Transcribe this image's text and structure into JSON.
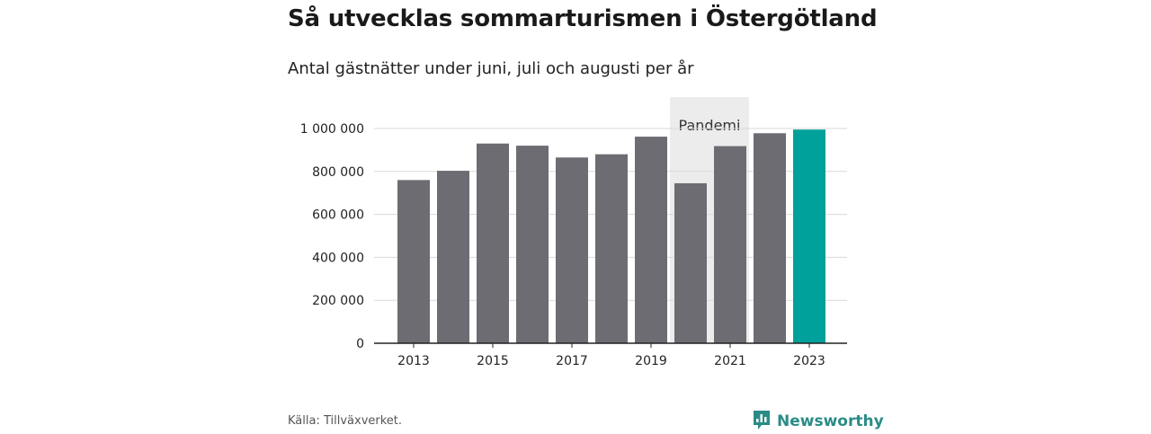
{
  "title": "Så utvecklas sommarturismen i Östergötland",
  "subtitle": "Antal gästnätter under juni, juli och augusti per år",
  "source": "Källa: Tillväxverket.",
  "brand": {
    "name": "Newsworthy",
    "icon": "newsworthy-logo-icon",
    "color": "#2a8c86"
  },
  "chart_data": {
    "type": "bar",
    "categories": [
      "2013",
      "2014",
      "2015",
      "2016",
      "2017",
      "2018",
      "2019",
      "2020",
      "2021",
      "2022",
      "2023"
    ],
    "values": [
      760000,
      803000,
      930000,
      920000,
      865000,
      880000,
      962000,
      745000,
      918000,
      978000,
      995000
    ],
    "ylim": [
      0,
      1000000
    ],
    "y_ticks": [
      {
        "value": 0,
        "label": "0"
      },
      {
        "value": 200000,
        "label": "200 000"
      },
      {
        "value": 400000,
        "label": "400 000"
      },
      {
        "value": 600000,
        "label": "600 000"
      },
      {
        "value": 800000,
        "label": "800 000"
      },
      {
        "value": 1000000,
        "label": "1 000 000"
      }
    ],
    "x_tick_labels": [
      "2013",
      "2015",
      "2017",
      "2019",
      "2021",
      "2023"
    ],
    "highlight": {
      "label": "Pandemi",
      "from": "2020",
      "to": "2021",
      "color": "#ececec"
    },
    "colors": {
      "bar": "#6d6c73",
      "highlight_bar": "#00a19a",
      "grid": "#d9d9d9",
      "axis": "#222222"
    },
    "highlight_category": "2023",
    "grid": true,
    "xlabel": "",
    "ylabel": ""
  }
}
